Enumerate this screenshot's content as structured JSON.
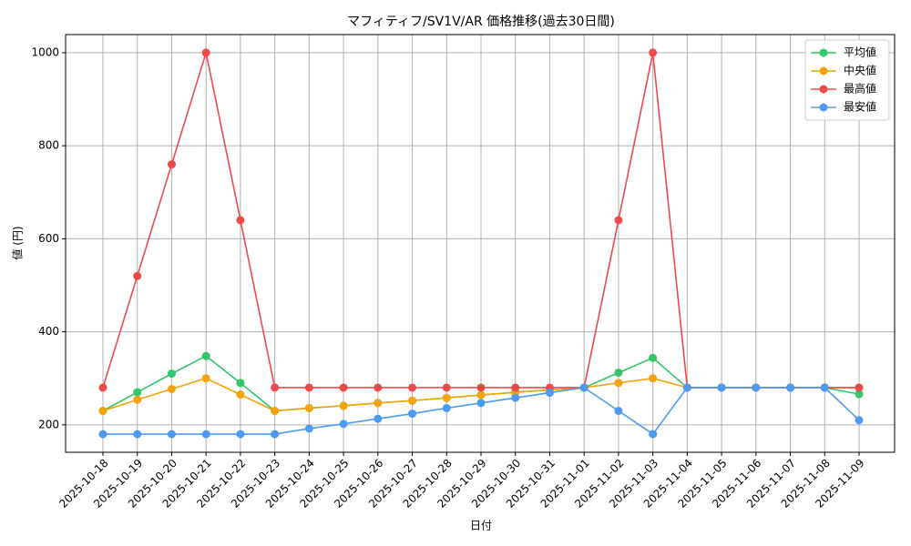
{
  "chart_data": {
    "type": "line",
    "title": "マフィティフ/SV1V/AR 価格推移(過去30日間)",
    "x_label": "日付",
    "y_label": "値 (円)",
    "categories": [
      "2025-10-18",
      "2025-10-19",
      "2025-10-20",
      "2025-10-21",
      "2025-10-22",
      "2025-10-23",
      "2025-10-24",
      "2025-10-25",
      "2025-10-26",
      "2025-10-27",
      "2025-10-28",
      "2025-10-29",
      "2025-10-30",
      "2025-10-31",
      "2025-11-01",
      "2025-11-02",
      "2025-11-03",
      "2025-11-04",
      "2025-11-05",
      "2025-11-06",
      "2025-11-07",
      "2025-11-08",
      "2025-11-09"
    ],
    "series": [
      {
        "name": "平均値",
        "color": "#33c56a",
        "values": [
          230,
          270,
          310,
          348,
          290,
          230,
          236,
          241,
          247,
          252,
          258,
          264,
          270,
          275,
          280,
          312,
          344,
          280,
          280,
          280,
          280,
          280,
          266
        ]
      },
      {
        "name": "中央値",
        "color": "#f5a30a",
        "values": [
          230,
          254,
          277,
          300,
          265,
          230,
          236,
          241,
          247,
          252,
          258,
          264,
          270,
          275,
          280,
          290,
          300,
          280,
          280,
          280,
          280,
          280,
          280
        ]
      },
      {
        "name": "最高値",
        "color": "#ef4a4a",
        "values": [
          280,
          520,
          760,
          1000,
          640,
          280,
          280,
          280,
          280,
          280,
          280,
          280,
          280,
          280,
          280,
          640,
          1000,
          280,
          280,
          280,
          280,
          280,
          280
        ]
      },
      {
        "name": "最安値",
        "color": "#4d9bf0",
        "values": [
          180,
          180,
          180,
          180,
          180,
          180,
          192,
          202,
          213,
          224,
          236,
          247,
          258,
          269,
          280,
          230,
          180,
          280,
          280,
          280,
          280,
          280,
          210
        ]
      }
    ],
    "ylim": [
      141,
      1039
    ],
    "yticks": [
      200,
      400,
      600,
      800,
      1000
    ],
    "grid": true,
    "legend": "upper right"
  }
}
